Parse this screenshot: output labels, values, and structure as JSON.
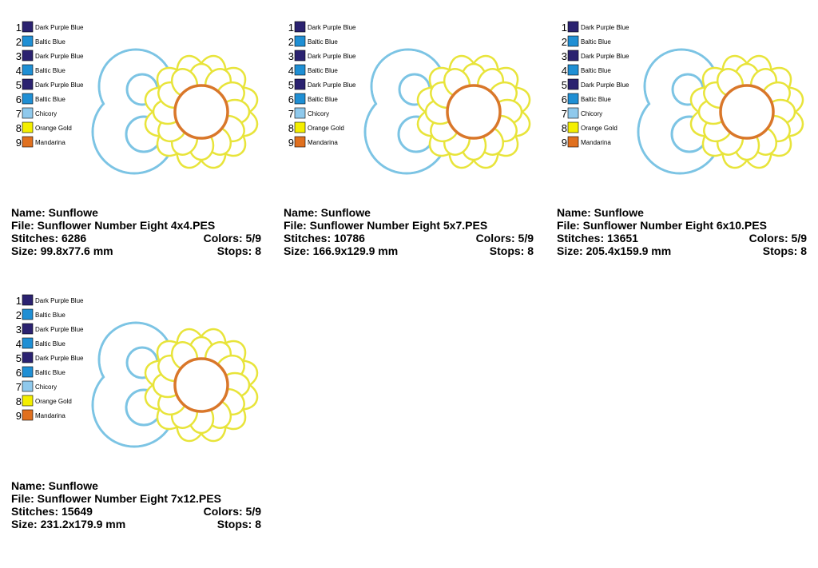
{
  "designs": [
    {
      "colors": [
        {
          "number": "1",
          "name": "Dark Purple Blue",
          "swatch": "#2b2270"
        },
        {
          "number": "2",
          "name": "Baltic Blue",
          "swatch": "#1f8fd4"
        },
        {
          "number": "3",
          "name": "Dark Purple Blue",
          "swatch": "#2b2270"
        },
        {
          "number": "4",
          "name": "Baltic Blue",
          "swatch": "#1f8fd4"
        },
        {
          "number": "5",
          "name": "Dark Purple Blue",
          "swatch": "#2b2270"
        },
        {
          "number": "6",
          "name": "Baltic Blue",
          "swatch": "#1f8fd4"
        },
        {
          "number": "7",
          "name": "Chicory",
          "swatch": "#8fc9ec"
        },
        {
          "number": "8",
          "name": "Orange Gold",
          "swatch": "#f4ef00"
        },
        {
          "number": "9",
          "name": "Mandarina",
          "swatch": "#e0701f"
        }
      ],
      "name": "Name: Sunflowe",
      "file": "File: Sunflower Number Eight 4x4.PES",
      "stitches": "Stitches: 6286",
      "colors_count": "Colors: 5/9",
      "size": "Size: 99.8x77.6 mm",
      "stops": "Stops: 8"
    },
    {
      "colors": [
        {
          "number": "1",
          "name": "Dark Purple Blue",
          "swatch": "#2b2270"
        },
        {
          "number": "2",
          "name": "Baltic Blue",
          "swatch": "#1f8fd4"
        },
        {
          "number": "3",
          "name": "Dark Purple Blue",
          "swatch": "#2b2270"
        },
        {
          "number": "4",
          "name": "Baltic Blue",
          "swatch": "#1f8fd4"
        },
        {
          "number": "5",
          "name": "Dark Purple Blue",
          "swatch": "#2b2270"
        },
        {
          "number": "6",
          "name": "Baltic Blue",
          "swatch": "#1f8fd4"
        },
        {
          "number": "7",
          "name": "Chicory",
          "swatch": "#8fc9ec"
        },
        {
          "number": "8",
          "name": "Orange Gold",
          "swatch": "#f4ef00"
        },
        {
          "number": "9",
          "name": "Mandarina",
          "swatch": "#e0701f"
        }
      ],
      "name": "Name: Sunflowe",
      "file": "File: Sunflower Number Eight 5x7.PES",
      "stitches": "Stitches: 10786",
      "colors_count": "Colors: 5/9",
      "size": "Size: 166.9x129.9 mm",
      "stops": "Stops: 8"
    },
    {
      "colors": [
        {
          "number": "1",
          "name": "Dark Purple Blue",
          "swatch": "#2b2270"
        },
        {
          "number": "2",
          "name": "Baltic Blue",
          "swatch": "#1f8fd4"
        },
        {
          "number": "3",
          "name": "Dark Purple Blue",
          "swatch": "#2b2270"
        },
        {
          "number": "4",
          "name": "Baltic Blue",
          "swatch": "#1f8fd4"
        },
        {
          "number": "5",
          "name": "Dark Purple Blue",
          "swatch": "#2b2270"
        },
        {
          "number": "6",
          "name": "Baltic Blue",
          "swatch": "#1f8fd4"
        },
        {
          "number": "7",
          "name": "Chicory",
          "swatch": "#8fc9ec"
        },
        {
          "number": "8",
          "name": "Orange Gold",
          "swatch": "#f4ef00"
        },
        {
          "number": "9",
          "name": "Mandarina",
          "swatch": "#e0701f"
        }
      ],
      "name": "Name: Sunflowe",
      "file": "File: Sunflower Number Eight 6x10.PES",
      "stitches": "Stitches: 13651",
      "colors_count": "Colors: 5/9",
      "size": "Size: 205.4x159.9 mm",
      "stops": "Stops: 8"
    },
    {
      "colors": [
        {
          "number": "1",
          "name": "Dark Purple Blue",
          "swatch": "#2b2270"
        },
        {
          "number": "2",
          "name": "Baltic Blue",
          "swatch": "#1f8fd4"
        },
        {
          "number": "3",
          "name": "Dark Purple Blue",
          "swatch": "#2b2270"
        },
        {
          "number": "4",
          "name": "Baltic Blue",
          "swatch": "#1f8fd4"
        },
        {
          "number": "5",
          "name": "Dark Purple Blue",
          "swatch": "#2b2270"
        },
        {
          "number": "6",
          "name": "Baltic Blue",
          "swatch": "#1f8fd4"
        },
        {
          "number": "7",
          "name": "Chicory",
          "swatch": "#8fc9ec"
        },
        {
          "number": "8",
          "name": "Orange Gold",
          "swatch": "#f4ef00"
        },
        {
          "number": "9",
          "name": "Mandarina",
          "swatch": "#e0701f"
        }
      ],
      "name": "Name: Sunflowe",
      "file": "File: Sunflower Number Eight 7x12.PES",
      "stitches": "Stitches: 15649",
      "colors_count": "Colors: 5/9",
      "size": "Size: 231.2x179.9 mm",
      "stops": "Stops: 8"
    }
  ]
}
